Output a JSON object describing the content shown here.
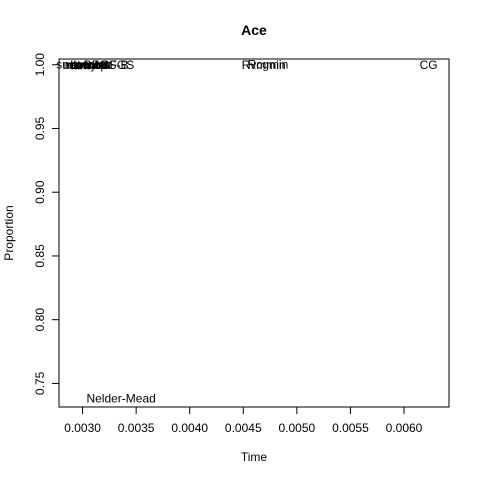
{
  "chart_data": {
    "type": "scatter",
    "title": "Ace",
    "xlabel": "Time",
    "ylabel": "Proportion",
    "xlim": [
      0.00278,
      0.00642
    ],
    "ylim": [
      0.7315,
      1.0045
    ],
    "x_ticks": [
      0.003,
      0.0035,
      0.004,
      0.0045,
      0.005,
      0.0055,
      0.006
    ],
    "x_tick_labels": [
      "0.0030",
      "0.0035",
      "0.0040",
      "0.0045",
      "0.0050",
      "0.0055",
      "0.0060"
    ],
    "y_ticks": [
      0.75,
      0.8,
      0.85,
      0.9,
      0.95,
      1.0
    ],
    "y_tick_labels": [
      "0.75",
      "0.80",
      "0.85",
      "0.90",
      "0.95",
      "1.00"
    ],
    "grid": false,
    "legend": "none",
    "points": [
      {
        "label": "snewtonm",
        "x": 0.00301,
        "y": 1.0
      },
      {
        "label": "newuoa",
        "x": 0.00303,
        "y": 0.9999
      },
      {
        "label": "ucminf",
        "x": 0.00298,
        "y": 0.9996
      },
      {
        "label": "nlminb",
        "x": 0.00302,
        "y": 0.9997
      },
      {
        "label": "nlm",
        "x": 0.00298,
        "y": 0.9995
      },
      {
        "label": "bobyqa",
        "x": 0.00307,
        "y": 0.9999
      },
      {
        "label": "L-BFGS-B",
        "x": 0.00317,
        "y": 0.9997
      },
      {
        "label": "BFGS",
        "x": 0.00333,
        "y": 0.9996
      },
      {
        "label": "Rcgmin",
        "x": 0.00473,
        "y": 1.0
      },
      {
        "label": "Rvmmin",
        "x": 0.00469,
        "y": 0.9996
      },
      {
        "label": "CG",
        "x": 0.00623,
        "y": 0.9996
      },
      {
        "label": "Nelder-Mead",
        "x": 0.00336,
        "y": 0.738
      }
    ]
  }
}
